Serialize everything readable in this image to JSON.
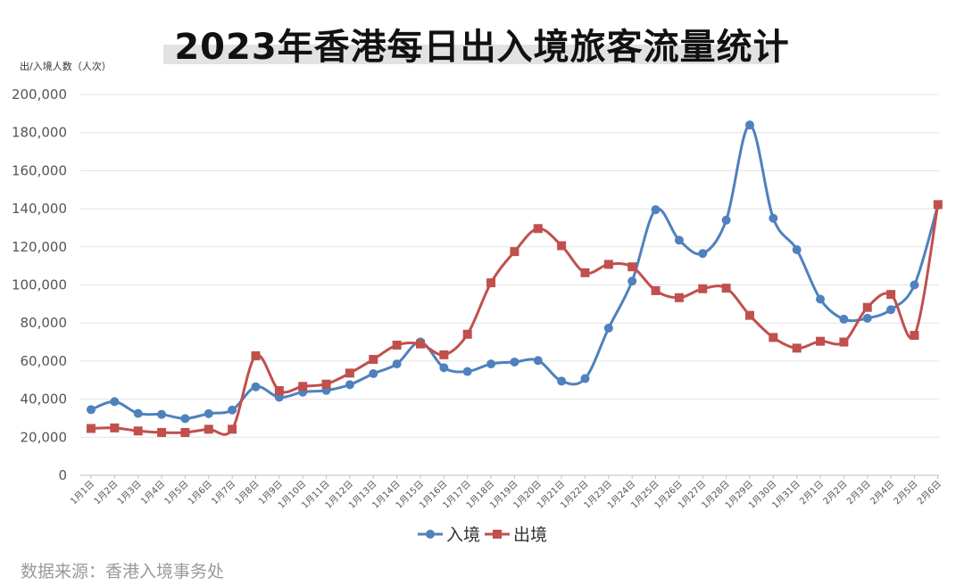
{
  "chart_data": {
    "type": "line",
    "title": "2023年香港每日出入境旅客流量统计",
    "ylabel": "出/入境人数（人次）",
    "ylim": [
      0,
      200000
    ],
    "yticks": [
      "0",
      "20,000",
      "40,000",
      "60,000",
      "80,000",
      "100,000",
      "120,000",
      "140,000",
      "160,000",
      "180,000",
      "200,000"
    ],
    "categories": [
      "1月1日",
      "1月2日",
      "1月3日",
      "1月4日",
      "1月5日",
      "1月6日",
      "1月7日",
      "1月8日",
      "1月9日",
      "1月10日",
      "1月11日",
      "1月12日",
      "1月13日",
      "1月14日",
      "1月15日",
      "1月16日",
      "1月17日",
      "1月18日",
      "1月19日",
      "1月20日",
      "1月21日",
      "1月22日",
      "1月23日",
      "1月24日",
      "1月25日",
      "1月26日",
      "1月27日",
      "1月28日",
      "1月29日",
      "1月30日",
      "1月31日",
      "2月1日",
      "2月2日",
      "2月3日",
      "2月4日",
      "2月5日",
      "2月6日"
    ],
    "series": [
      {
        "name": "入境",
        "color": "#4f81bd",
        "marker": "circle",
        "values": [
          34500,
          38700,
          32500,
          32000,
          29800,
          32400,
          34300,
          46500,
          41000,
          43700,
          44600,
          47600,
          53400,
          58500,
          70000,
          56500,
          54500,
          58500,
          59500,
          60300,
          49500,
          50800,
          77300,
          102000,
          139500,
          123500,
          116500,
          134000,
          184000,
          135000,
          118500,
          92500,
          82000,
          82500,
          87000,
          100000,
          142000
        ]
      },
      {
        "name": "出境",
        "color": "#c0504d",
        "marker": "square",
        "values": [
          24600,
          24900,
          23300,
          22500,
          22500,
          24200,
          24200,
          62800,
          44500,
          46700,
          47900,
          53700,
          60900,
          68400,
          69000,
          63300,
          74100,
          101100,
          117500,
          129600,
          120600,
          106400,
          110800,
          109500,
          97000,
          93300,
          98000,
          98300,
          84000,
          72400,
          66800,
          70400,
          70000,
          88200,
          95000,
          73500,
          142200
        ]
      }
    ],
    "legend_position": "bottom-center",
    "grid": true
  },
  "source": "数据来源：香港入境事务处"
}
